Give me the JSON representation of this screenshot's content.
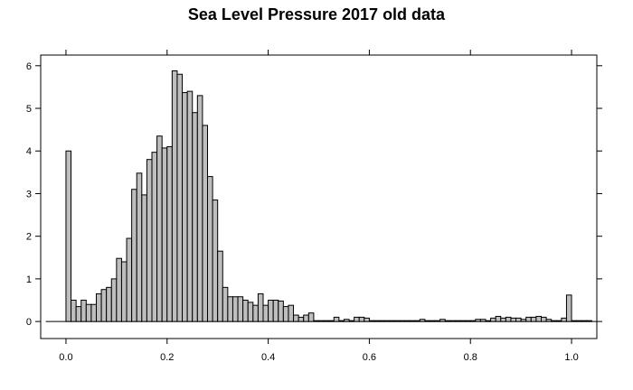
{
  "chart_data": {
    "type": "bar",
    "title": "Sea Level Pressure 2017 old data",
    "xlabel": "",
    "ylabel": "",
    "xlim": [
      -0.05,
      1.05
    ],
    "ylim": [
      -0.4,
      6.25
    ],
    "bin_width": 0.01,
    "x_ticks": [
      0.0,
      0.2,
      0.4,
      0.6,
      0.8,
      1.0
    ],
    "x_tick_labels": [
      "0.0",
      "0.2",
      "0.4",
      "0.6",
      "0.8",
      "1.0"
    ],
    "y_ticks": [
      0,
      1,
      2,
      3,
      4,
      5,
      6
    ],
    "y_tick_labels": [
      "0",
      "1",
      "2",
      "3",
      "4",
      "5",
      "6"
    ],
    "grid": false,
    "bar_color": "#bebebe",
    "edge_color": "#000000",
    "x": [
      -0.04,
      -0.03,
      -0.02,
      -0.01,
      0.0,
      0.01,
      0.02,
      0.03,
      0.04,
      0.05,
      0.06,
      0.07,
      0.08,
      0.09,
      0.1,
      0.11,
      0.12,
      0.13,
      0.14,
      0.15,
      0.16,
      0.17,
      0.18,
      0.19,
      0.2,
      0.21,
      0.22,
      0.23,
      0.24,
      0.25,
      0.26,
      0.27,
      0.28,
      0.29,
      0.3,
      0.31,
      0.32,
      0.33,
      0.34,
      0.35,
      0.36,
      0.37,
      0.38,
      0.39,
      0.4,
      0.41,
      0.42,
      0.43,
      0.44,
      0.45,
      0.46,
      0.47,
      0.48,
      0.49,
      0.5,
      0.51,
      0.52,
      0.53,
      0.54,
      0.55,
      0.56,
      0.57,
      0.58,
      0.59,
      0.6,
      0.61,
      0.62,
      0.63,
      0.64,
      0.65,
      0.66,
      0.67,
      0.68,
      0.69,
      0.7,
      0.71,
      0.72,
      0.73,
      0.74,
      0.75,
      0.76,
      0.77,
      0.78,
      0.79,
      0.8,
      0.81,
      0.82,
      0.83,
      0.84,
      0.85,
      0.86,
      0.87,
      0.88,
      0.89,
      0.9,
      0.91,
      0.92,
      0.93,
      0.94,
      0.95,
      0.96,
      0.97,
      0.98,
      0.99,
      1.0,
      1.01,
      1.02,
      1.03,
      1.04
    ],
    "values": [
      0,
      0,
      0,
      0,
      4.0,
      0.5,
      0.35,
      0.5,
      0.4,
      0.4,
      0.65,
      0.75,
      0.8,
      1.0,
      1.48,
      1.4,
      1.95,
      3.1,
      3.48,
      2.97,
      3.8,
      3.97,
      4.35,
      4.07,
      4.1,
      5.88,
      5.8,
      5.37,
      5.4,
      4.9,
      5.3,
      4.6,
      3.4,
      2.85,
      1.65,
      0.8,
      0.58,
      0.58,
      0.58,
      0.5,
      0.45,
      0.38,
      0.65,
      0.38,
      0.5,
      0.5,
      0.48,
      0.35,
      0.38,
      0.15,
      0.1,
      0.15,
      0.2,
      0.02,
      0.02,
      0.02,
      0.02,
      0.1,
      0.02,
      0.05,
      0.02,
      0.1,
      0.1,
      0.08,
      0.02,
      0.02,
      0.02,
      0.02,
      0.02,
      0.02,
      0.02,
      0.02,
      0.02,
      0.02,
      0.05,
      0.02,
      0.02,
      0.02,
      0.05,
      0.02,
      0.02,
      0.02,
      0.02,
      0.02,
      0.02,
      0.05,
      0.05,
      0.02,
      0.08,
      0.12,
      0.08,
      0.1,
      0.08,
      0.08,
      0.05,
      0.1,
      0.1,
      0.12,
      0.1,
      0.05,
      0.02,
      0.02,
      0.08,
      0.62,
      0.02,
      0.02,
      0.02,
      0.02,
      0.0
    ]
  }
}
